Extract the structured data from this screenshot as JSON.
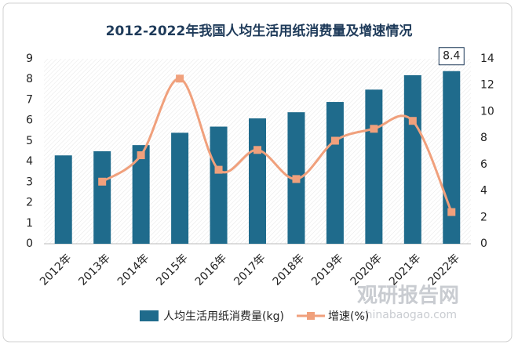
{
  "chart_data": {
    "type": "bar-line",
    "title": "2012-2022年我国人均生活用纸消费量及增速情况",
    "categories": [
      "2012年",
      "2013年",
      "2014年",
      "2015年",
      "2016年",
      "2017年",
      "2018年",
      "2019年",
      "2020年",
      "2021年",
      "2022年"
    ],
    "series": [
      {
        "name": "人均生活用纸消费量(kg)",
        "type": "bar",
        "color": "#1f6b8c",
        "values": [
          4.3,
          4.5,
          4.8,
          5.4,
          5.7,
          6.1,
          6.4,
          6.9,
          7.5,
          8.2,
          8.4
        ]
      },
      {
        "name": "增速(%)",
        "type": "line",
        "axis": "y2",
        "color": "#f0a07c",
        "values": [
          null,
          4.7,
          6.7,
          12.5,
          5.6,
          7.1,
          4.9,
          7.8,
          8.7,
          9.3,
          2.4
        ]
      }
    ],
    "annotation": {
      "series": 0,
      "index": 10,
      "label": "8.4"
    },
    "ylim": [
      0,
      9
    ],
    "yticks": [
      0,
      1,
      2,
      3,
      4,
      5,
      6,
      7,
      8,
      9
    ],
    "y2lim": [
      0,
      14
    ],
    "y2ticks": [
      0,
      2,
      4,
      6,
      8,
      10,
      12,
      14
    ],
    "watermark": [
      "观研报告网",
      "chinabaogao.com"
    ]
  }
}
